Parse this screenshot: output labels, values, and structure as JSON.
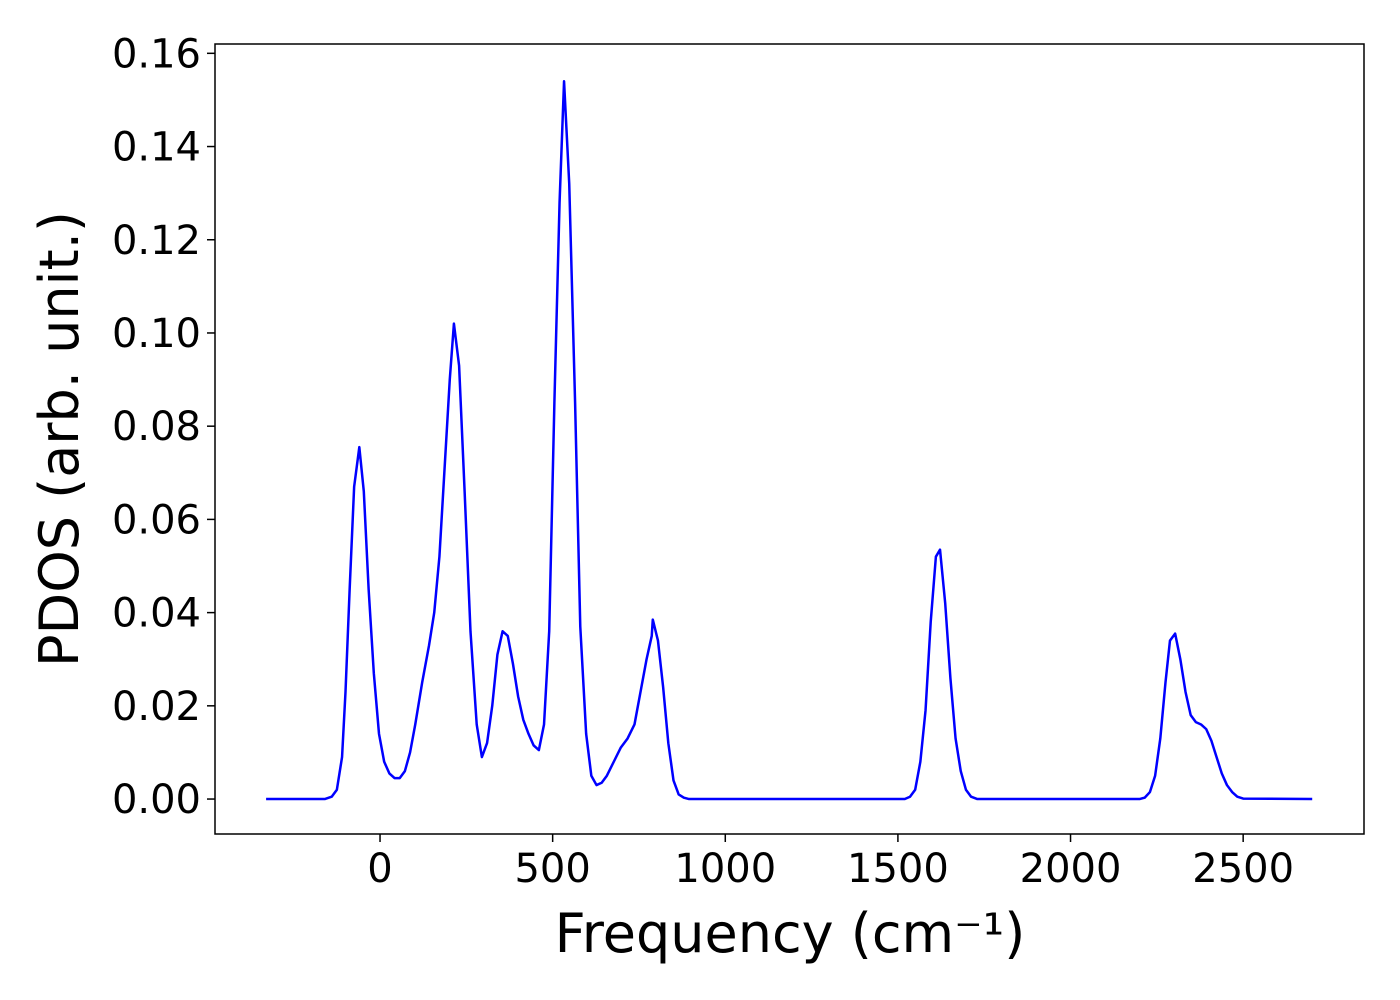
{
  "chart_data": {
    "type": "line",
    "xlabel": "Frequency (cm⁻¹)",
    "ylabel": "PDOS (arb. unit.)",
    "xlim": [
      -478,
      2850
    ],
    "ylim": [
      -0.0075,
      0.162
    ],
    "xticks": [
      0,
      500,
      1000,
      1500,
      2000,
      2500
    ],
    "yticks": [
      {
        "value": 0,
        "label": "0.00"
      },
      {
        "value": 0.02,
        "label": "0.02"
      },
      {
        "value": 0.04,
        "label": "0.04"
      },
      {
        "value": 0.06,
        "label": "0.06"
      },
      {
        "value": 0.08,
        "label": "0.08"
      },
      {
        "value": 0.1,
        "label": "0.10"
      },
      {
        "value": 0.12,
        "label": "0.12"
      },
      {
        "value": 0.14,
        "label": "0.14"
      },
      {
        "value": 0.16,
        "label": "0.16"
      }
    ],
    "grid": false,
    "series": [
      {
        "color": "#0000ff",
        "x": [
          -330,
          -160,
          -140,
          -125,
          -110,
          -100,
          -88,
          -75,
          -60,
          -47,
          -33,
          -18,
          -3,
          12,
          27,
          42,
          57,
          72,
          87,
          102,
          122,
          142,
          157,
          172,
          187,
          202,
          214,
          229,
          245,
          262,
          280,
          295,
          310,
          325,
          340,
          355,
          370,
          385,
          400,
          415,
          430,
          445,
          460,
          475,
          490,
          505,
          520,
          533,
          548,
          565,
          580,
          597,
          612,
          627,
          642,
          657,
          677,
          697,
          717,
          737,
          757,
          772,
          787,
          790,
          805,
          820,
          835,
          850,
          865,
          880,
          895,
          1520,
          1535,
          1550,
          1565,
          1580,
          1595,
          1610,
          1622,
          1637,
          1652,
          1667,
          1682,
          1697,
          1712,
          1730,
          2200,
          2215,
          2230,
          2245,
          2260,
          2275,
          2288,
          2303,
          2318,
          2333,
          2348,
          2363,
          2378,
          2393,
          2408,
          2423,
          2438,
          2453,
          2468,
          2483,
          2500,
          2700
        ],
        "values": [
          0,
          0,
          0.0005,
          0.002,
          0.009,
          0.023,
          0.045,
          0.067,
          0.0755,
          0.066,
          0.045,
          0.027,
          0.014,
          0.008,
          0.0055,
          0.0045,
          0.0045,
          0.006,
          0.01,
          0.016,
          0.025,
          0.033,
          0.04,
          0.052,
          0.071,
          0.09,
          0.102,
          0.093,
          0.066,
          0.036,
          0.016,
          0.009,
          0.012,
          0.02,
          0.031,
          0.036,
          0.035,
          0.029,
          0.022,
          0.017,
          0.014,
          0.0115,
          0.0105,
          0.016,
          0.036,
          0.085,
          0.128,
          0.154,
          0.132,
          0.085,
          0.037,
          0.014,
          0.005,
          0.003,
          0.0035,
          0.005,
          0.008,
          0.011,
          0.013,
          0.016,
          0.024,
          0.03,
          0.035,
          0.0385,
          0.034,
          0.024,
          0.012,
          0.004,
          0.001,
          0.0003,
          0,
          0,
          0.0005,
          0.002,
          0.008,
          0.019,
          0.038,
          0.052,
          0.0535,
          0.042,
          0.026,
          0.013,
          0.006,
          0.002,
          0.0005,
          0,
          0,
          0.0003,
          0.0015,
          0.005,
          0.013,
          0.025,
          0.034,
          0.0355,
          0.03,
          0.023,
          0.018,
          0.0165,
          0.016,
          0.015,
          0.0125,
          0.009,
          0.0055,
          0.003,
          0.0015,
          0.0005,
          0.0001,
          0
        ]
      }
    ]
  }
}
